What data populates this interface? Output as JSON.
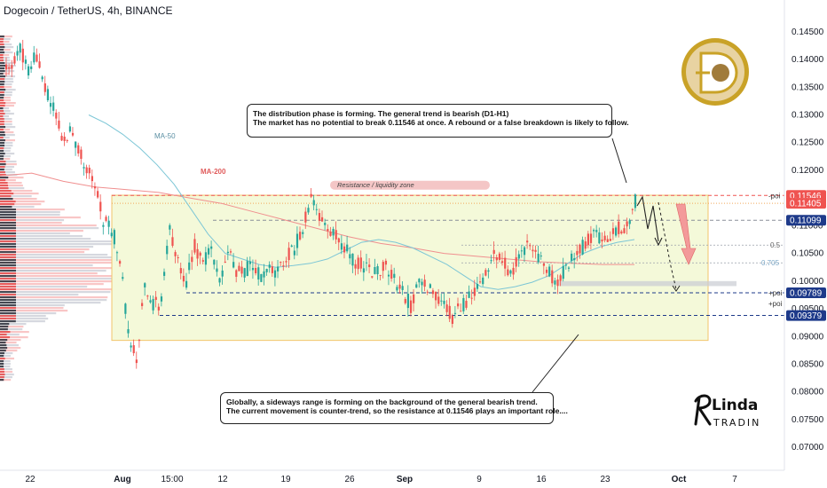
{
  "header": {
    "symbol": "Dogecoin / TetherUS, 4h, BINANCE"
  },
  "annotations": {
    "note_top": [
      "The distribution phase is forming. The general trend is bearish (D1-H1)",
      "The market has no potential to break 0.11546 at once. A rebound or a false breakdown is likely to follow."
    ],
    "note_bottom": [
      "Globally, a sideways range is forming on the background of the general bearish trend.",
      "The current movement is counter-trend, so the resistance at 0.11546 plays an important role...."
    ],
    "resistance_zone": "Resistance / liquidity zone",
    "ma50": "MA-50",
    "ma200": "MA-200",
    "fib_05": "0.5",
    "fib_0705": "0.705",
    "poi_top": "-poi",
    "poi_mid": "+poi",
    "poi_low": "+poi"
  },
  "logo": {
    "name": "Linda Trading",
    "icon": "dogecoin-logo-icon"
  },
  "colors": {
    "up": "#26a69a",
    "down": "#ef5350",
    "range_fill": "#f4f9d9",
    "range_border": "#f2c46b",
    "ma200": "#f08f8f",
    "ma50": "#7cc6d6",
    "resistance": "#ef5350",
    "doge": "#c9a227"
  },
  "chart_data": {
    "type": "candlestick",
    "title": "Dogecoin / TetherUS, 4h, BINANCE",
    "ylim": [
      0.0665,
      0.1485
    ],
    "y_ticks": [
      "0.14500",
      "0.14000",
      "0.13500",
      "0.13000",
      "0.12500",
      "0.12000",
      "0.11500",
      "0.11000",
      "0.10500",
      "0.10000",
      "0.09500",
      "0.09000",
      "0.08500",
      "0.08000",
      "0.07500",
      "0.07000"
    ],
    "x_ticks": [
      "22",
      "Aug",
      "15:00",
      "12",
      "19",
      "26",
      "Sep",
      "9",
      "16",
      "23",
      "Oct",
      "7"
    ],
    "price_labels": [
      {
        "value": 0.11546,
        "text": "0.11546",
        "color": "#ef5350"
      },
      {
        "value": 0.11405,
        "text": "0.11405",
        "color": "#ef5350"
      },
      {
        "value": 0.11099,
        "text": "0.11099",
        "color": "#1e3a8a"
      },
      {
        "value": 0.09789,
        "text": "0.09789",
        "color": "#1e3a8a"
      },
      {
        "value": 0.09379,
        "text": "0.09379",
        "color": "#1e3a8a"
      }
    ],
    "range_box": {
      "top": 0.1155,
      "bottom": 0.0893
    },
    "levels": [
      0.11546,
      0.11405,
      0.11099,
      0.0979,
      0.0938
    ],
    "fib_levels": [
      {
        "label": "0.5",
        "value": 0.1065
      },
      {
        "label": "0.705",
        "value": 0.1033
      }
    ],
    "resistance_zone": {
      "from": 0.1165,
      "to": 0.1178
    },
    "support_zone": {
      "from": 0.0991,
      "to": 0.1
    },
    "series": [
      {
        "name": "price (close, approx)",
        "values": [
          0.139,
          0.142,
          0.1385,
          0.1408,
          0.1352,
          0.1312,
          0.126,
          0.127,
          0.1242,
          0.1205,
          0.1178,
          0.1108,
          0.1095,
          0.1045,
          0.0905,
          0.0856,
          0.1002,
          0.0958,
          0.0962,
          0.1095,
          0.104,
          0.1,
          0.1065,
          0.103,
          0.106,
          0.1,
          0.105,
          0.102,
          0.1018,
          0.1032,
          0.1005,
          0.1028,
          0.1015,
          0.104,
          0.106,
          0.1095,
          0.1152,
          0.111,
          0.109,
          0.108,
          0.1058,
          0.104,
          0.103,
          0.102,
          0.1015,
          0.103,
          0.1,
          0.0978,
          0.0956,
          0.0998,
          0.099,
          0.0978,
          0.096,
          0.0935,
          0.0953,
          0.097,
          0.0985,
          0.1012,
          0.105,
          0.1035,
          0.1015,
          0.104,
          0.1068,
          0.1055,
          0.103,
          0.1008,
          0.1003,
          0.1035,
          0.105,
          0.1068,
          0.1088,
          0.1075,
          0.108,
          0.1095,
          0.11,
          0.1143
        ]
      },
      {
        "name": "MA-50",
        "values": [
          0.13,
          0.1285,
          0.1265,
          0.124,
          0.121,
          0.1175,
          0.113,
          0.1085,
          0.105,
          0.104,
          0.103,
          0.1025,
          0.1028,
          0.1032,
          0.104,
          0.1055,
          0.107,
          0.1075,
          0.107,
          0.106,
          0.1045,
          0.103,
          0.101,
          0.099,
          0.0985,
          0.099,
          0.0998,
          0.101,
          0.103,
          0.105,
          0.1062,
          0.107,
          0.1075
        ]
      },
      {
        "name": "MA-200",
        "values": [
          0.119,
          0.1195,
          0.118,
          0.117,
          0.1165,
          0.116,
          0.115,
          0.114,
          0.1125,
          0.111,
          0.1095,
          0.108,
          0.1068,
          0.106,
          0.105,
          0.1045,
          0.104,
          0.1035,
          0.1032,
          0.103,
          0.103
        ]
      }
    ]
  }
}
